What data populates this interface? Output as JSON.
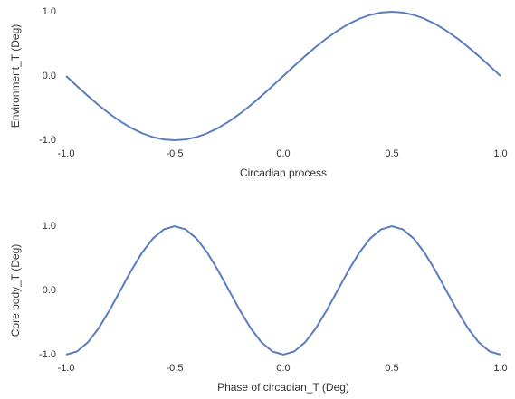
{
  "chart_data": [
    {
      "type": "line",
      "x_label": "Circadian process",
      "y_label": "Environment_T (Deg)",
      "color": "#5a7dc0",
      "x": [
        -1,
        -0.95,
        -0.9,
        -0.85,
        -0.8,
        -0.75,
        -0.7,
        -0.65,
        -0.6,
        -0.55,
        -0.5,
        -0.45,
        -0.4,
        -0.35,
        -0.3,
        -0.25,
        -0.2,
        -0.15,
        -0.1,
        -0.05,
        0,
        0.05,
        0.1,
        0.15,
        0.2,
        0.25,
        0.3,
        0.35,
        0.4,
        0.45,
        0.5,
        0.55,
        0.6,
        0.65,
        0.7,
        0.75,
        0.8,
        0.85,
        0.9,
        0.95,
        1
      ],
      "values": [
        0,
        -0.156,
        -0.309,
        -0.454,
        -0.588,
        -0.707,
        -0.809,
        -0.891,
        -0.951,
        -0.988,
        -1,
        -0.988,
        -0.951,
        -0.891,
        -0.809,
        -0.707,
        -0.588,
        -0.454,
        -0.309,
        -0.156,
        0,
        0.156,
        0.309,
        0.454,
        0.588,
        0.707,
        0.809,
        0.891,
        0.951,
        0.988,
        1,
        0.988,
        0.951,
        0.891,
        0.809,
        0.707,
        0.588,
        0.454,
        0.309,
        0.156,
        0
      ],
      "xlim": [
        -1,
        1
      ],
      "ylim": [
        -1,
        1
      ],
      "xticks": [
        {
          "value": -1,
          "label": "-1.0"
        },
        {
          "value": -0.5,
          "label": "-0.5"
        },
        {
          "value": 0,
          "label": "0.0"
        },
        {
          "value": 0.5,
          "label": "0.5"
        },
        {
          "value": 1,
          "label": "1.0"
        }
      ],
      "yticks": [
        {
          "value": -1,
          "label": "-1.0"
        },
        {
          "value": 0,
          "label": "0.0"
        },
        {
          "value": 1,
          "label": "1.0"
        }
      ]
    },
    {
      "type": "line",
      "x_label": "Phase of circadian_T (Deg)",
      "y_label": "Core body_T (Deg)",
      "color": "#5a7dc0",
      "x": [
        -1,
        -0.95,
        -0.9,
        -0.85,
        -0.8,
        -0.75,
        -0.7,
        -0.65,
        -0.6,
        -0.55,
        -0.5,
        -0.45,
        -0.4,
        -0.35,
        -0.3,
        -0.25,
        -0.2,
        -0.15,
        -0.1,
        -0.05,
        0,
        0.05,
        0.1,
        0.15,
        0.2,
        0.25,
        0.3,
        0.35,
        0.4,
        0.45,
        0.5,
        0.55,
        0.6,
        0.65,
        0.7,
        0.75,
        0.8,
        0.85,
        0.9,
        0.95,
        1
      ],
      "values": [
        -1,
        -0.951,
        -0.809,
        -0.588,
        -0.309,
        0,
        0.309,
        0.588,
        0.809,
        0.951,
        1,
        0.951,
        0.809,
        0.588,
        0.309,
        0,
        -0.309,
        -0.588,
        -0.809,
        -0.951,
        -1,
        -0.951,
        -0.809,
        -0.588,
        -0.309,
        0,
        0.309,
        0.588,
        0.809,
        0.951,
        1,
        0.951,
        0.809,
        0.588,
        0.309,
        0,
        -0.309,
        -0.588,
        -0.809,
        -0.951,
        -1
      ],
      "xlim": [
        -1,
        1
      ],
      "ylim": [
        -1,
        1
      ],
      "xticks": [
        {
          "value": -1,
          "label": "-1.0"
        },
        {
          "value": -0.5,
          "label": "-0.5"
        },
        {
          "value": 0,
          "label": "0.0"
        },
        {
          "value": 0.5,
          "label": "0.5"
        },
        {
          "value": 1,
          "label": "1.0"
        }
      ],
      "yticks": [
        {
          "value": -1,
          "label": "-1.0"
        },
        {
          "value": 0,
          "label": "0.0"
        },
        {
          "value": 1,
          "label": "1.0"
        }
      ]
    }
  ]
}
